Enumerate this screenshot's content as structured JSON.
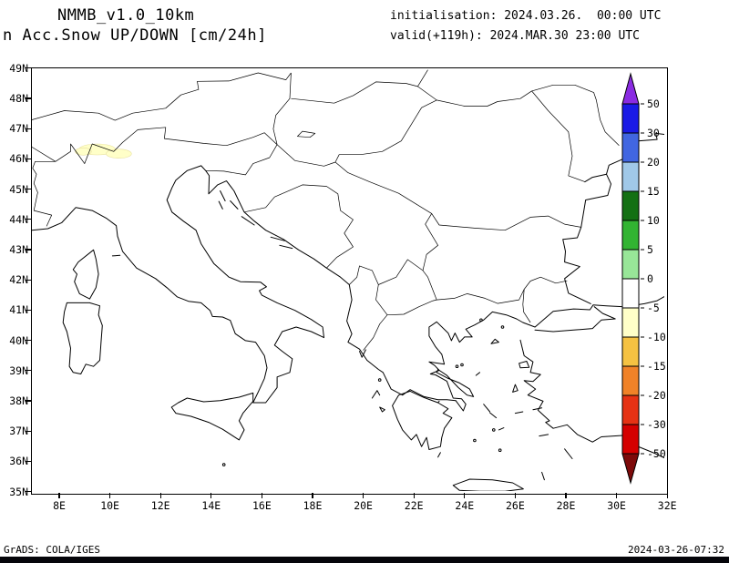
{
  "header": {
    "model": "NMMB_v1.0_10km",
    "product": "n Acc.Snow UP/DOWN [cm/24h]",
    "init_line": "initialisation: 2024.03.26.  00:00 UTC",
    "valid_line": "valid(+119h): 2024.MAR.30 23:00 UTC"
  },
  "axes": {
    "lat_labels": [
      "49N",
      "48N",
      "47N",
      "46N",
      "45N",
      "44N",
      "43N",
      "42N",
      "41N",
      "40N",
      "39N",
      "38N",
      "37N",
      "36N",
      "35N"
    ],
    "lon_labels": [
      "8E",
      "10E",
      "12E",
      "14E",
      "16E",
      "18E",
      "20E",
      "22E",
      "24E",
      "26E",
      "28E",
      "30E",
      "32E"
    ],
    "lat_range_deg": [
      35,
      49
    ],
    "lon_range_deg": [
      7,
      32
    ]
  },
  "colorbar": {
    "unit": "cm/24h",
    "boundary_labels": [
      "50",
      "30",
      "20",
      "15",
      "10",
      "5",
      "0",
      "-5",
      "-10",
      "-15",
      "-20",
      "-30",
      "-50"
    ],
    "segment_colors_top_to_bottom": [
      "#1a1ae6",
      "#4166e1",
      "#a0c8e8",
      "#137013",
      "#32b432",
      "#98e698",
      "#ffffff",
      "#ffffc8",
      "#f5c242",
      "#f08228",
      "#e63214",
      "#d40000"
    ],
    "top_arrow_color": "#8a2be2",
    "bottom_arrow_color": "#7d0a0a"
  },
  "map": {
    "snow_patch_color": "#ffffc8",
    "snow_patch_edge_color": "#e8e0a0",
    "snow_patches": [
      {
        "lon": 9.5,
        "lat": 46.32,
        "rx_deg": 0.72,
        "ry_deg": 0.18
      },
      {
        "lon": 10.35,
        "lat": 46.18,
        "rx_deg": 0.5,
        "ry_deg": 0.15
      },
      {
        "lon": 8.95,
        "lat": 46.25,
        "rx_deg": 0.32,
        "ry_deg": 0.12
      }
    ]
  },
  "footer": {
    "left": "GrADS: COLA/IGES",
    "right": "2024-03-26-07:32"
  }
}
